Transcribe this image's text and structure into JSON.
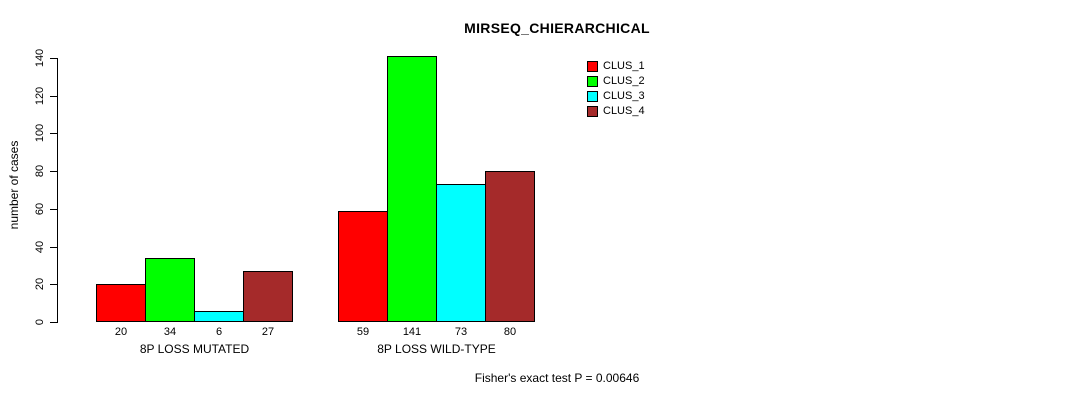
{
  "chart_data": {
    "type": "bar",
    "title": "MIRSEQ_CHIERARCHICAL",
    "ylabel": "number of cases",
    "xlabel": "",
    "groups": [
      "8P LOSS MUTATED",
      "8P LOSS WILD-TYPE"
    ],
    "series": [
      {
        "name": "CLUS_1",
        "color": "#FF0000",
        "values": [
          20,
          59
        ]
      },
      {
        "name": "CLUS_2",
        "color": "#00FF00",
        "values": [
          34,
          141
        ]
      },
      {
        "name": "CLUS_3",
        "color": "#00FFFF",
        "values": [
          6,
          73
        ]
      },
      {
        "name": "CLUS_4",
        "color": "#A52A2A",
        "values": [
          27,
          80
        ]
      }
    ],
    "y_ticks": [
      0,
      20,
      40,
      60,
      80,
      100,
      120,
      140
    ],
    "ylim": [
      0,
      140
    ],
    "grid": false,
    "legend_position": "top-right",
    "axis_color": "#000000",
    "background_color": "#FFFFFF",
    "footnote": "Fisher's exact test P = 0.00646"
  }
}
